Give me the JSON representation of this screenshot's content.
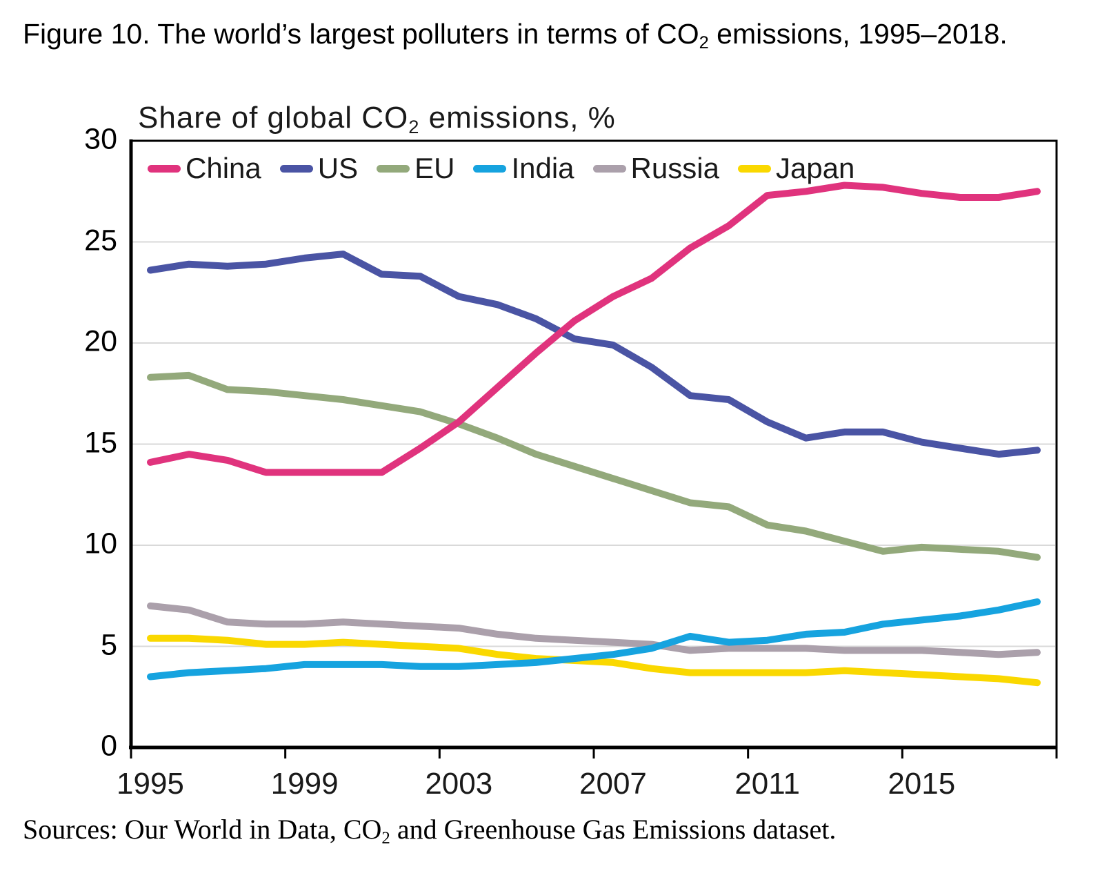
{
  "figure_title": {
    "pre": "Figure 10. The world’s largest polluters in terms of CO",
    "sub": "2",
    "post": " emissions, 1995–2018."
  },
  "chart_heading": {
    "pre": "Share of global CO",
    "sub": "2",
    "post": " emissions,  %"
  },
  "source_line": {
    "pre": "Sources: Our World in Data, CO",
    "sub": "2",
    "post": " and Greenhouse Gas Emissions dataset."
  },
  "axes": {
    "y_ticks": [
      "0",
      "5",
      "10",
      "15",
      "20",
      "25",
      "30"
    ],
    "x_ticks": [
      "1995",
      "1999",
      "2003",
      "2007",
      "2011",
      "2015"
    ]
  },
  "colors": {
    "grid": "#D9D9D9",
    "axis": "#000000",
    "text": "#000000"
  },
  "chart_data": {
    "type": "line",
    "title": "Share of global CO2 emissions, %",
    "xlabel": "",
    "ylabel": "Share of global CO2 emissions, %",
    "ylim": [
      0,
      30
    ],
    "grid": "horizontal",
    "legend_position": "top-inside",
    "x": [
      1995,
      1996,
      1997,
      1998,
      1999,
      2000,
      2001,
      2002,
      2003,
      2004,
      2005,
      2006,
      2007,
      2008,
      2009,
      2010,
      2011,
      2012,
      2013,
      2014,
      2015,
      2016,
      2017,
      2018
    ],
    "x_tick_labels": [
      "1995",
      "1999",
      "2003",
      "2007",
      "2011",
      "2015"
    ],
    "series": [
      {
        "name": "China",
        "color": "#E0337D",
        "values": [
          14.1,
          14.5,
          14.2,
          13.6,
          13.6,
          13.6,
          13.6,
          14.8,
          16.1,
          17.8,
          19.5,
          21.1,
          22.3,
          23.2,
          24.7,
          25.8,
          27.3,
          27.5,
          27.8,
          27.7,
          27.4,
          27.2,
          27.2,
          27.5
        ]
      },
      {
        "name": "US",
        "color": "#4A54A4",
        "values": [
          23.6,
          23.9,
          23.8,
          23.9,
          24.2,
          24.4,
          23.4,
          23.3,
          22.3,
          21.9,
          21.2,
          20.2,
          19.9,
          18.8,
          17.4,
          17.2,
          16.1,
          15.3,
          15.6,
          15.6,
          15.1,
          14.8,
          14.5,
          14.7
        ]
      },
      {
        "name": "EU",
        "color": "#93A97B",
        "values": [
          18.3,
          18.4,
          17.7,
          17.6,
          17.4,
          17.2,
          16.9,
          16.6,
          16.0,
          15.3,
          14.5,
          13.9,
          13.3,
          12.7,
          12.1,
          11.9,
          11.0,
          10.7,
          10.2,
          9.7,
          9.9,
          9.8,
          9.7,
          9.4
        ]
      },
      {
        "name": "India",
        "color": "#16A3DF",
        "values": [
          3.5,
          3.7,
          3.8,
          3.9,
          4.1,
          4.1,
          4.1,
          4.0,
          4.0,
          4.1,
          4.2,
          4.4,
          4.6,
          4.9,
          5.5,
          5.2,
          5.3,
          5.6,
          5.7,
          6.1,
          6.3,
          6.5,
          6.8,
          7.2
        ]
      },
      {
        "name": "Russia",
        "color": "#ABA0AB",
        "values": [
          7.0,
          6.8,
          6.2,
          6.1,
          6.1,
          6.2,
          6.1,
          6.0,
          5.9,
          5.6,
          5.4,
          5.3,
          5.2,
          5.1,
          4.8,
          4.9,
          4.9,
          4.9,
          4.8,
          4.8,
          4.8,
          4.7,
          4.6,
          4.7
        ]
      },
      {
        "name": "Japan",
        "color": "#FAD800",
        "values": [
          5.4,
          5.4,
          5.3,
          5.1,
          5.1,
          5.2,
          5.1,
          5.0,
          4.9,
          4.6,
          4.4,
          4.3,
          4.2,
          3.9,
          3.7,
          3.7,
          3.7,
          3.7,
          3.8,
          3.7,
          3.6,
          3.5,
          3.4,
          3.2
        ]
      }
    ]
  }
}
